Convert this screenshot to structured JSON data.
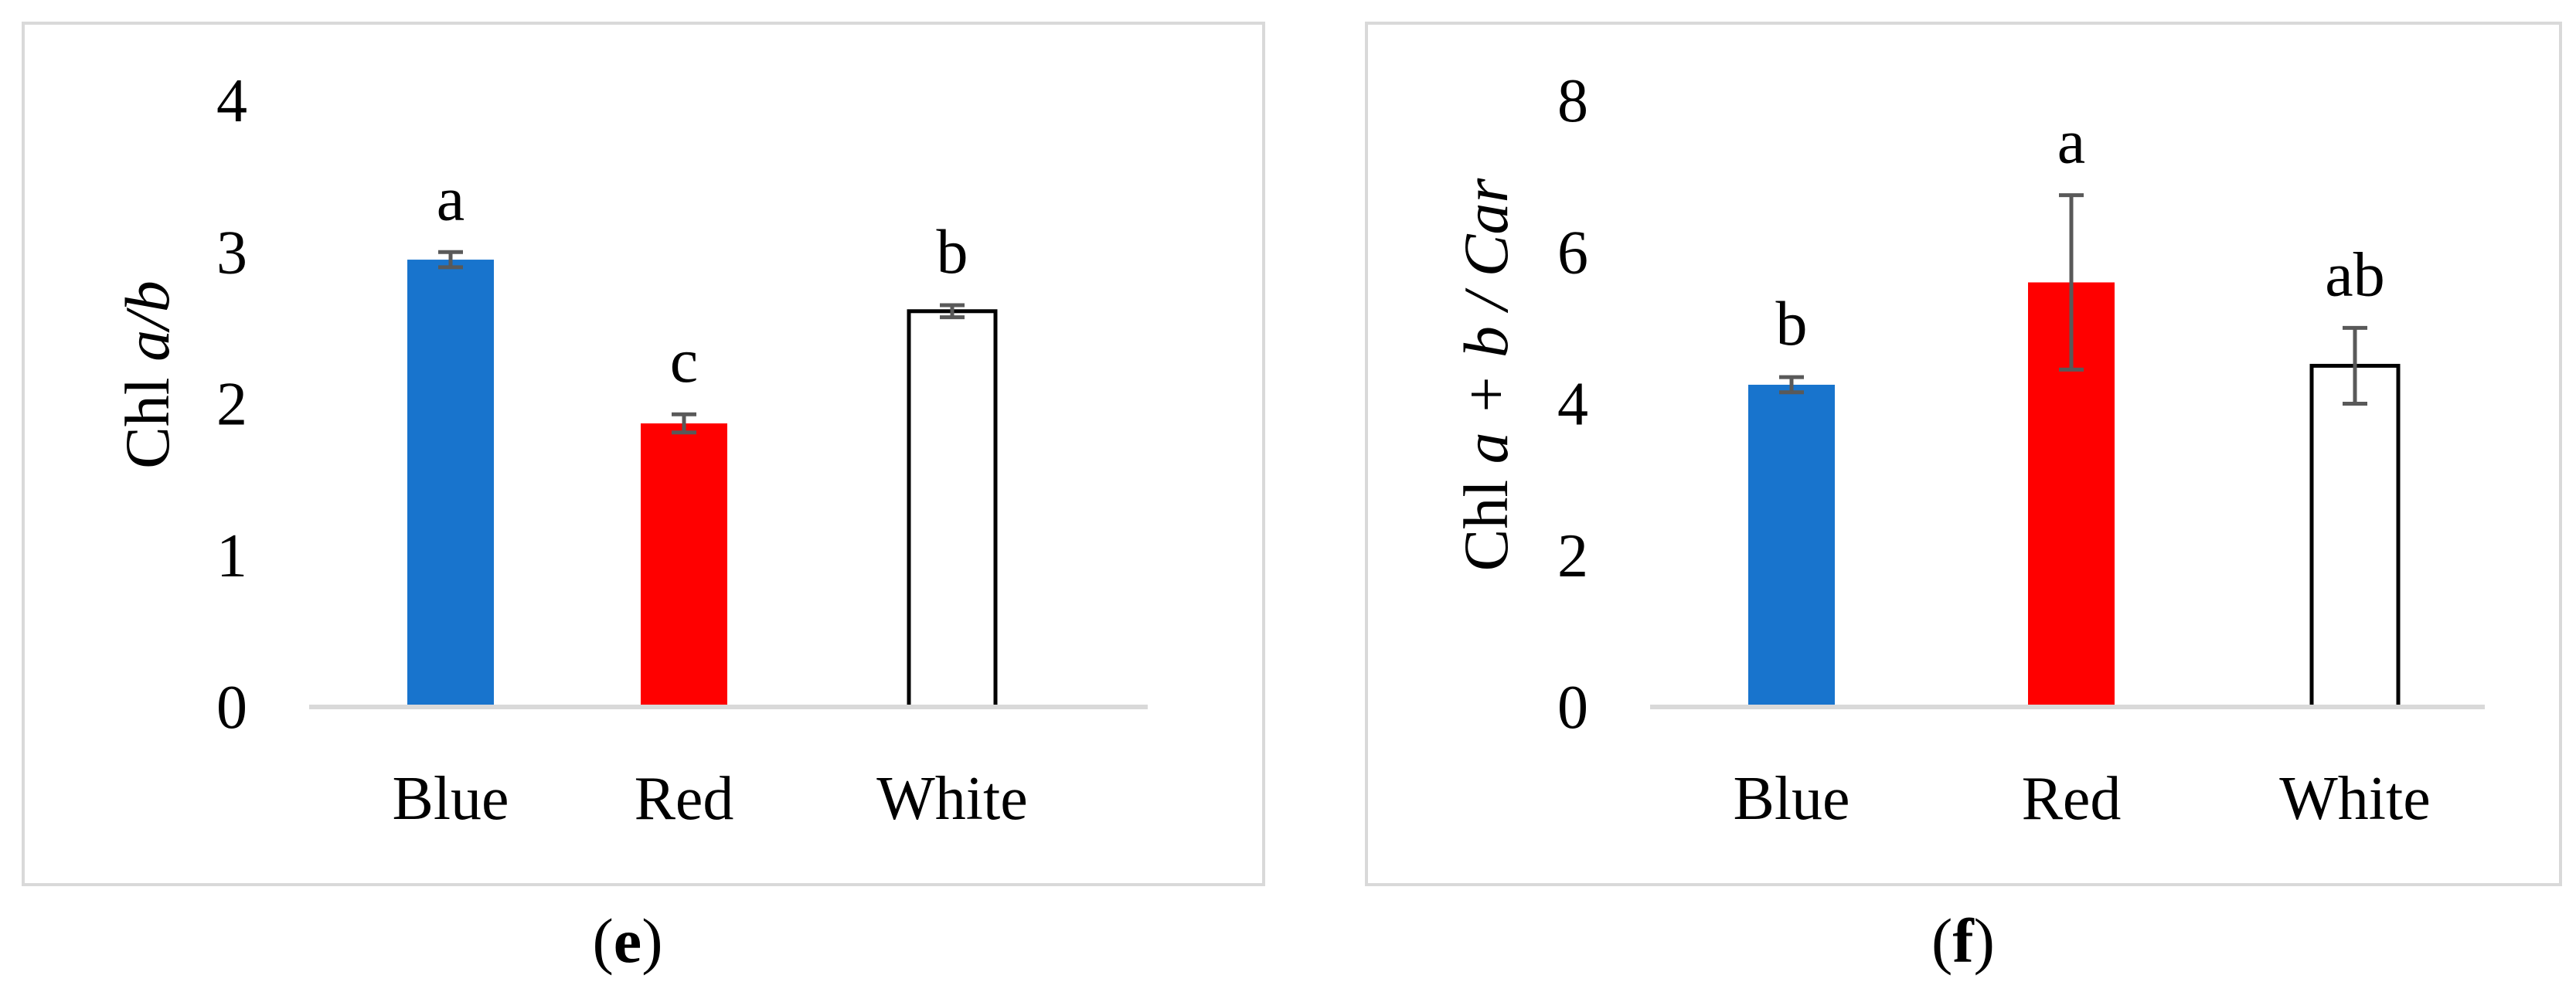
{
  "chart_data": [
    {
      "type": "bar",
      "panel_label": "e",
      "ylabel": {
        "prefix": "Chl ",
        "italic": "a/b",
        "suffix": ""
      },
      "categories": [
        "Blue",
        "Red",
        "White"
      ],
      "values": [
        2.95,
        1.87,
        2.61
      ],
      "errors": [
        0.05,
        0.06,
        0.04
      ],
      "letters": [
        "a",
        "c",
        "b"
      ],
      "colors": [
        "#1874CD",
        "#FF0000",
        "#FFFFFF"
      ],
      "ylim": [
        0,
        4
      ],
      "yticks": [
        "0",
        "1",
        "2",
        "3",
        "4"
      ],
      "grid": false
    },
    {
      "type": "bar",
      "panel_label": "f",
      "ylabel": {
        "prefix": "Chl ",
        "italic": "a + b / Car",
        "suffix": ""
      },
      "categories": [
        "Blue",
        "Red",
        "White"
      ],
      "values": [
        4.25,
        5.6,
        4.5
      ],
      "errors": [
        0.1,
        1.15,
        0.5
      ],
      "letters": [
        "b",
        "a",
        "ab"
      ],
      "colors": [
        "#1874CD",
        "#FF0000",
        "#FFFFFF"
      ],
      "ylim": [
        0,
        8
      ],
      "yticks": [
        "0",
        "2",
        "4",
        "6",
        "8"
      ],
      "grid": false
    }
  ]
}
